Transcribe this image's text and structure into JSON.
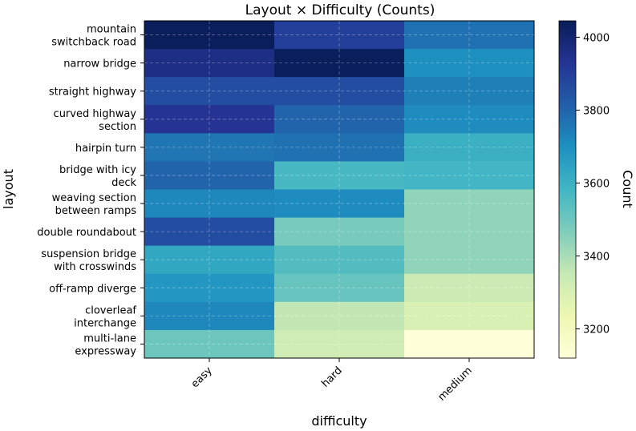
{
  "chart_data": {
    "type": "heatmap",
    "title": "Layout × Difficulty (Counts)",
    "xlabel": "difficulty",
    "ylabel": "layout",
    "colorbar_label": "Count",
    "x_categories": [
      "easy",
      "hard",
      "medium"
    ],
    "y_categories": [
      [
        "mountain",
        "switchback road"
      ],
      [
        "narrow bridge"
      ],
      [
        "straight highway"
      ],
      [
        "curved highway",
        "section"
      ],
      [
        "hairpin turn"
      ],
      [
        "bridge with icy",
        "deck"
      ],
      [
        "weaving section",
        "between ramps"
      ],
      [
        "double roundabout"
      ],
      [
        "suspension bridge",
        "with crosswinds"
      ],
      [
        "off-ramp diverge"
      ],
      [
        "cloverleaf",
        "interchange"
      ],
      [
        "multi-lane",
        "expressway"
      ]
    ],
    "values": [
      [
        4040,
        3900,
        3770
      ],
      [
        3960,
        4040,
        3700
      ],
      [
        3860,
        3860,
        3740
      ],
      [
        3930,
        3800,
        3710
      ],
      [
        3760,
        3770,
        3600
      ],
      [
        3800,
        3570,
        3580
      ],
      [
        3720,
        3710,
        3440
      ],
      [
        3860,
        3480,
        3440
      ],
      [
        3630,
        3550,
        3440
      ],
      [
        3680,
        3510,
        3340
      ],
      [
        3720,
        3360,
        3300
      ],
      [
        3500,
        3330,
        3120
      ]
    ],
    "colorbar_ticks": [
      3200,
      3400,
      3600,
      3800,
      4000
    ],
    "color_range": [
      3120,
      4045
    ],
    "colormap": "YlGnBu",
    "grid": true
  }
}
